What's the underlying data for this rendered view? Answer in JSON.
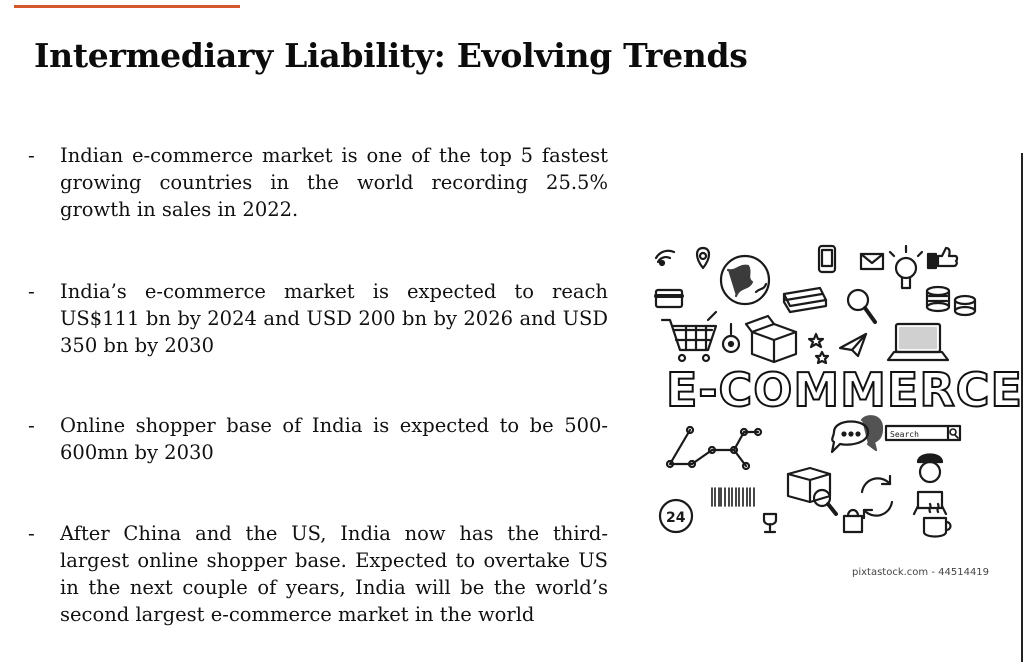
{
  "slide": {
    "title": "Intermediary Liability: Evolving Trends",
    "accent_color": "#d4582a",
    "bullets": [
      {
        "dash": "-",
        "text": "Indian e-commerce market is one of the top 5 fastest growing countries in the world recording 25.5% growth in sales in 2022."
      },
      {
        "dash": "-",
        "text": "India’s e-commerce market is expected to reach US$111 bn by 2024 and USD 200 bn by 2026 and USD 350 bn by 2030"
      },
      {
        "dash": "-",
        "text": "Online shopper base of India is expected to be 500-600mn by 2030"
      },
      {
        "dash": "-",
        "text": "After China and the US, India now has the third-largest online shopper base. Expected to overtake US in the next couple of years, India will be the world’s second largest e-commerce market in the world"
      }
    ]
  },
  "image": {
    "wordmark": "E-COMMERCE",
    "search_label": "Search",
    "badge_24": "24",
    "watermark": "pixtastock.com - 44514419",
    "icons": [
      "wifi-icon",
      "map-pin-icon",
      "globe-icon",
      "phone-icon",
      "mail-icon",
      "lightbulb-icon",
      "thumbs-up-icon",
      "credit-card-icon",
      "cash-icon",
      "magnifier-icon",
      "coins-icon",
      "cart-icon",
      "tag-icon",
      "box-icon",
      "star-icon",
      "paper-plane-icon",
      "laptop-icon",
      "network-icon",
      "chat-bubble-icon",
      "search-bar-icon",
      "courier-icon",
      "24h-icon",
      "barcode-icon",
      "delivery-box-icon",
      "refresh-icon",
      "shopping-bag-icon",
      "coffee-cup-icon"
    ]
  }
}
